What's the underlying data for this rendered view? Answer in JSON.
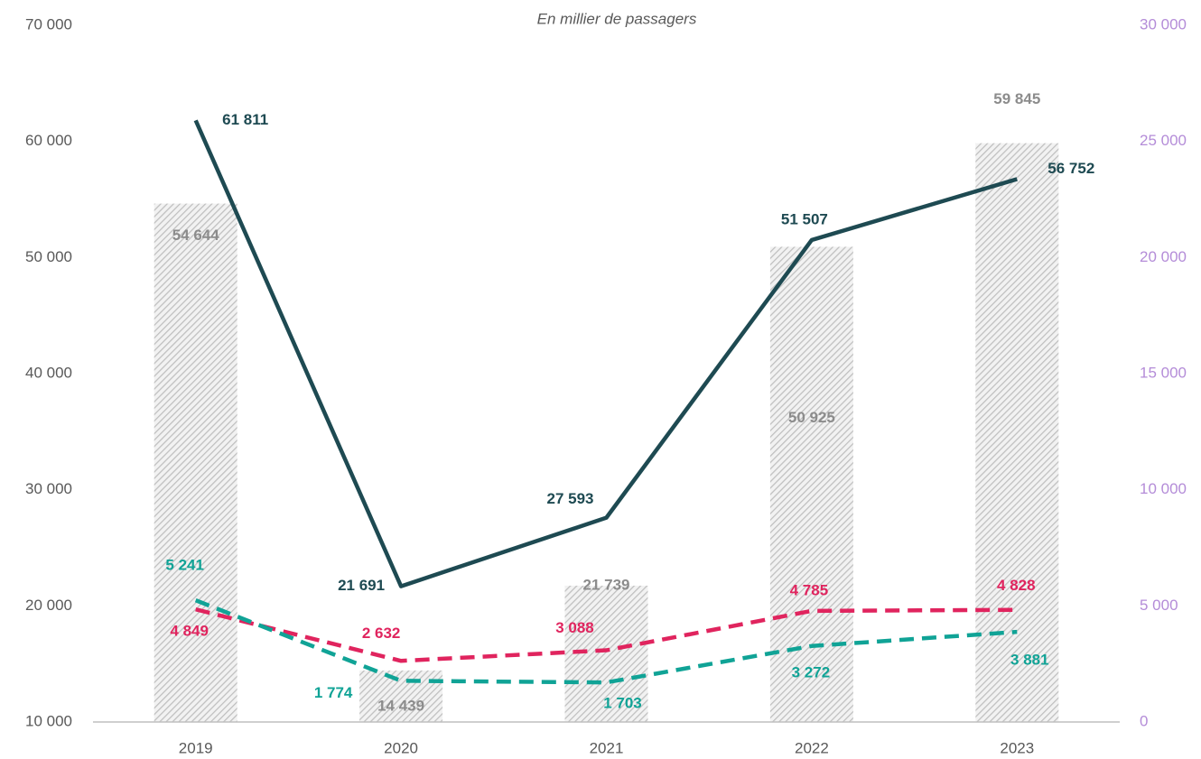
{
  "chart_data": {
    "type": "bar-line",
    "subtitle": "En millier de passagers",
    "categories": [
      "2019",
      "2020",
      "2021",
      "2022",
      "2023"
    ],
    "ylim": [
      10000,
      70000
    ],
    "yticks": [
      {
        "value": 10000,
        "label": "10 000"
      },
      {
        "value": 20000,
        "label": "20 000"
      },
      {
        "value": 30000,
        "label": "30 000"
      },
      {
        "value": 40000,
        "label": "40 000"
      },
      {
        "value": 50000,
        "label": "50 000"
      },
      {
        "value": 60000,
        "label": "60 000"
      },
      {
        "value": 70000,
        "label": "70 000"
      }
    ],
    "y2lim": [
      0,
      30000
    ],
    "y2ticks": [
      0,
      {
        "value": 5000,
        "label": "5 000"
      },
      {
        "value": 10000,
        "label": "10 000"
      },
      {
        "value": 15000,
        "label": "15 000"
      },
      {
        "value": 20000,
        "label": "20 000"
      },
      {
        "value": 25000,
        "label": "25 000"
      },
      {
        "value": 30000,
        "label": "30 000"
      }
    ],
    "series": [
      {
        "type": "bar",
        "color": "#bfbfbf",
        "values": [
          54644,
          14439,
          21739,
          50925,
          59845
        ],
        "value_labels": [
          "54 644",
          "14 439",
          "21 739",
          "50 925",
          "59 845"
        ],
        "label_color": "#8c8c8c"
      },
      {
        "type": "line",
        "color": "#1e4a52",
        "values": [
          61811,
          21691,
          27593,
          51507,
          56752
        ],
        "value_labels": [
          "61 811",
          "21 691",
          "27 593",
          "51 507",
          "56 752"
        ]
      },
      {
        "type": "line",
        "dashed": true,
        "axis": "y2",
        "color": "#e0245e",
        "values": [
          4849,
          2632,
          3088,
          4785,
          4828
        ],
        "value_labels": [
          "4 849",
          "2 632",
          "3 088",
          "4 785",
          "4 828"
        ]
      },
      {
        "type": "line",
        "dashed": true,
        "axis": "y2",
        "color": "#10a396",
        "values": [
          5241,
          1774,
          1703,
          3272,
          3881
        ],
        "value_labels": [
          "5 241",
          "1 774",
          "1 703",
          "3 272",
          "3 881"
        ]
      }
    ]
  }
}
